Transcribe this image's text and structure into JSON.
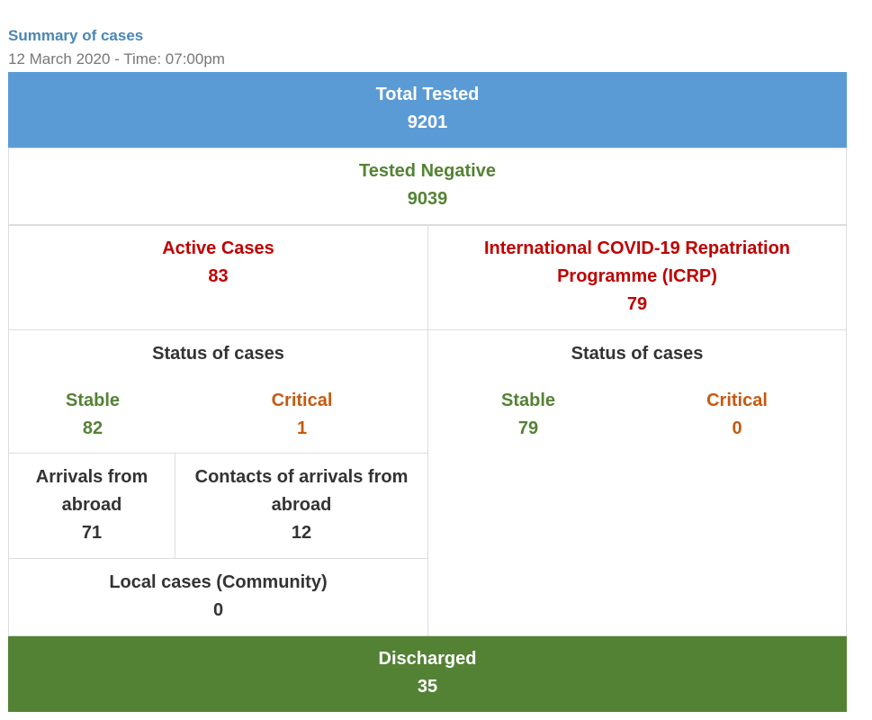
{
  "header": {
    "title": "Summary of cases",
    "subtitle": "12 March 2020 - Time: 07:00pm"
  },
  "total_tested": {
    "label": "Total Tested",
    "value": "9201"
  },
  "tested_negative": {
    "label": "Tested Negative",
    "value": "9039"
  },
  "active_cases": {
    "label": "Active Cases",
    "value": "83",
    "status_title": "Status of cases",
    "stable_label": "Stable",
    "stable_value": "82",
    "critical_label": "Critical",
    "critical_value": "1"
  },
  "icrp": {
    "label_line1": "International COVID-19 Repatriation",
    "label_line2": "Programme (ICRP)",
    "value": "79",
    "status_title": "Status of cases",
    "stable_label": "Stable",
    "stable_value": "79",
    "critical_label": "Critical",
    "critical_value": "0"
  },
  "arrivals": {
    "label_line1": "Arrivals from",
    "label_line2": "abroad",
    "value": "71"
  },
  "contacts": {
    "label_line1": "Contacts of arrivals from",
    "label_line2": "abroad",
    "value": "12"
  },
  "local": {
    "label": "Local cases (Community)",
    "value": "0"
  },
  "discharged": {
    "label": "Discharged",
    "value": "35"
  },
  "colors": {
    "title_blue": "#4a86b5",
    "total_tested_bg": "#5b9bd5",
    "discharged_bg": "#548235",
    "negative_green": "#548235",
    "active_red": "#c00000",
    "critical_orange": "#c55a11"
  }
}
